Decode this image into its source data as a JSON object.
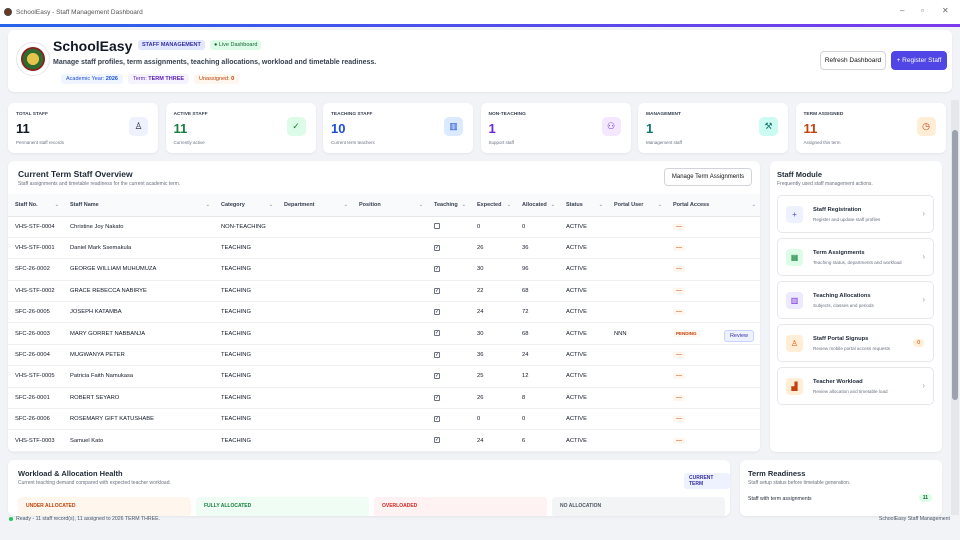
{
  "window": {
    "title": "SchoolEasy - Staff Management Dashboard"
  },
  "header": {
    "brand": "SchoolEasy",
    "chip_module": "STAFF MANAGEMENT",
    "chip_live": "● Live Dashboard",
    "subtitle": "Manage staff profiles, term assignments, teaching allocations, workload and timetable readiness.",
    "tags": {
      "year_label": "Academic Year:",
      "year_value": "2026",
      "term_label": "Term:",
      "term_value": "TERM THREE",
      "unassigned_label": "Unassigned:",
      "unassigned_value": "0"
    },
    "refresh_label": "Refresh Dashboard",
    "register_label": "+ Register Staff"
  },
  "stats": [
    {
      "label": "TOTAL STAFF",
      "value": "11",
      "sub": "Permanent staff records",
      "color": "#111827",
      "icon": "user-icon"
    },
    {
      "label": "ACTIVE STAFF",
      "value": "11",
      "sub": "Currently active",
      "color": "#15803d",
      "icon": "check-icon"
    },
    {
      "label": "TEACHING STAFF",
      "value": "10",
      "sub": "Current term teachers",
      "color": "#1d4ed8",
      "icon": "books-icon"
    },
    {
      "label": "NON-TEACHING",
      "value": "1",
      "sub": "Support staff",
      "color": "#6d28d9",
      "icon": "people-icon"
    },
    {
      "label": "MANAGEMENT",
      "value": "1",
      "sub": "Management staff",
      "color": "#0f766e",
      "icon": "tools-icon"
    },
    {
      "label": "TERM ASSIGNED",
      "value": "11",
      "sub": "Assigned this term",
      "color": "#c2410c",
      "icon": "clock-icon"
    }
  ],
  "overview": {
    "title": "Current Term Staff Overview",
    "subtitle": "Staff assignments and timetable readiness for the current academic term.",
    "manage_label": "Manage Term Assignments",
    "columns": [
      "Staff No.",
      "Staff Name",
      "Category",
      "Department",
      "Position",
      "Teaching",
      "Expected",
      "Allocated",
      "Status",
      "Portal User",
      "Portal Access"
    ],
    "rows": [
      {
        "no": "VHS-STF-0004",
        "name": "Christine Joy Nakato",
        "category": "NON-TEACHING",
        "teaching": false,
        "expected": "0",
        "allocated": "0",
        "status": "ACTIVE",
        "portal_user": "",
        "access": "—"
      },
      {
        "no": "VHS-STF-0001",
        "name": "Daniel Mark Ssemakula",
        "category": "TEACHING",
        "teaching": true,
        "expected": "26",
        "allocated": "36",
        "status": "ACTIVE",
        "portal_user": "",
        "access": "—"
      },
      {
        "no": "SFC-26-0002",
        "name": "GEORGE WILLIAM MUHUMUZA",
        "category": "TEACHING",
        "teaching": true,
        "expected": "30",
        "allocated": "96",
        "status": "ACTIVE",
        "portal_user": "",
        "access": "—"
      },
      {
        "no": "VHS-STF-0002",
        "name": "GRACE REBECCA NABIRYE",
        "category": "TEACHING",
        "teaching": true,
        "expected": "22",
        "allocated": "68",
        "status": "ACTIVE",
        "portal_user": "",
        "access": "—"
      },
      {
        "no": "SFC-26-0005",
        "name": "JOSEPH KATAMBA",
        "category": "TEACHING",
        "teaching": true,
        "expected": "24",
        "allocated": "72",
        "status": "ACTIVE",
        "portal_user": "",
        "access": "—"
      },
      {
        "no": "SFC-26-0003",
        "name": "MARY GORRET NABBANJA",
        "category": "TEACHING",
        "teaching": true,
        "expected": "30",
        "allocated": "68",
        "status": "ACTIVE",
        "portal_user": "NNN",
        "access": "PENDING",
        "review": "Review"
      },
      {
        "no": "SFC-26-0004",
        "name": "MUGWANYA PETER",
        "category": "TEACHING",
        "teaching": true,
        "expected": "36",
        "allocated": "24",
        "status": "ACTIVE",
        "portal_user": "",
        "access": "—"
      },
      {
        "no": "VHS-STF-0005",
        "name": "Patricia Faith Namukasa",
        "category": "TEACHING",
        "teaching": true,
        "expected": "25",
        "allocated": "12",
        "status": "ACTIVE",
        "portal_user": "",
        "access": "—"
      },
      {
        "no": "SFC-26-0001",
        "name": "ROBERT SEYARO",
        "category": "TEACHING",
        "teaching": true,
        "expected": "26",
        "allocated": "8",
        "status": "ACTIVE",
        "portal_user": "",
        "access": "—"
      },
      {
        "no": "SFC-26-0006",
        "name": "ROSEMARY GIFT KATUSHABE",
        "category": "TEACHING",
        "teaching": true,
        "expected": "0",
        "allocated": "0",
        "status": "ACTIVE",
        "portal_user": "",
        "access": "—"
      },
      {
        "no": "VHS-STF-0003",
        "name": "Samuel Kato",
        "category": "TEACHING",
        "teaching": true,
        "expected": "24",
        "allocated": "6",
        "status": "ACTIVE",
        "portal_user": "",
        "access": "—"
      }
    ]
  },
  "module": {
    "title": "Staff Module",
    "subtitle": "Frequently used staff management actions.",
    "items": [
      {
        "title": "Staff Registration",
        "sub": "Register and update staff profiles",
        "icon": "plus-icon",
        "bg": "#eef2ff",
        "fg": "#4f46e5",
        "glyph": "+"
      },
      {
        "title": "Term Assignments",
        "sub": "Teaching status, departments and workload",
        "icon": "calendar-icon",
        "bg": "#dcfce7",
        "fg": "#15803d",
        "glyph": "▦"
      },
      {
        "title": "Teaching Allocations",
        "sub": "Subjects, classes and periods",
        "icon": "books-icon",
        "bg": "#ede9fe",
        "fg": "#6d28d9",
        "glyph": "▥"
      },
      {
        "title": "Staff Portal Signups",
        "sub": "Review mobile portal access requests",
        "icon": "person-icon",
        "bg": "#ffedd5",
        "fg": "#ea580c",
        "glyph": "♙",
        "badge": "0"
      },
      {
        "title": "Teacher Workload",
        "sub": "Review allocation and timetable load",
        "icon": "workload-chart-icon",
        "bg": "#ffedd5",
        "fg": "#c2410c",
        "glyph": "▟"
      }
    ]
  },
  "workload": {
    "title": "Workload & Allocation Health",
    "subtitle": "Current teaching demand compared with expected teacher workload.",
    "badge": "CURRENT TERM",
    "cards": [
      {
        "label": "UNDER ALLOCATED",
        "bg": "#fff7ed",
        "fg": "#c2410c"
      },
      {
        "label": "FULLY ALLOCATED",
        "bg": "#f0fdf4",
        "fg": "#15803d"
      },
      {
        "label": "OVERLOADED",
        "bg": "#fef2f2",
        "fg": "#dc2626"
      },
      {
        "label": "NO ALLOCATION",
        "bg": "#f3f4f6",
        "fg": "#4b5563"
      }
    ]
  },
  "readiness": {
    "title": "Term Readiness",
    "subtitle": "Staff setup status before timetable generation.",
    "row_label": "Staff with term assignments",
    "row_value": "11"
  },
  "statusbar": {
    "left": "Ready - 11 staff record(s), 11 assigned to 2026 TERM THREE.",
    "right": "SchoolEasy Staff Management"
  }
}
